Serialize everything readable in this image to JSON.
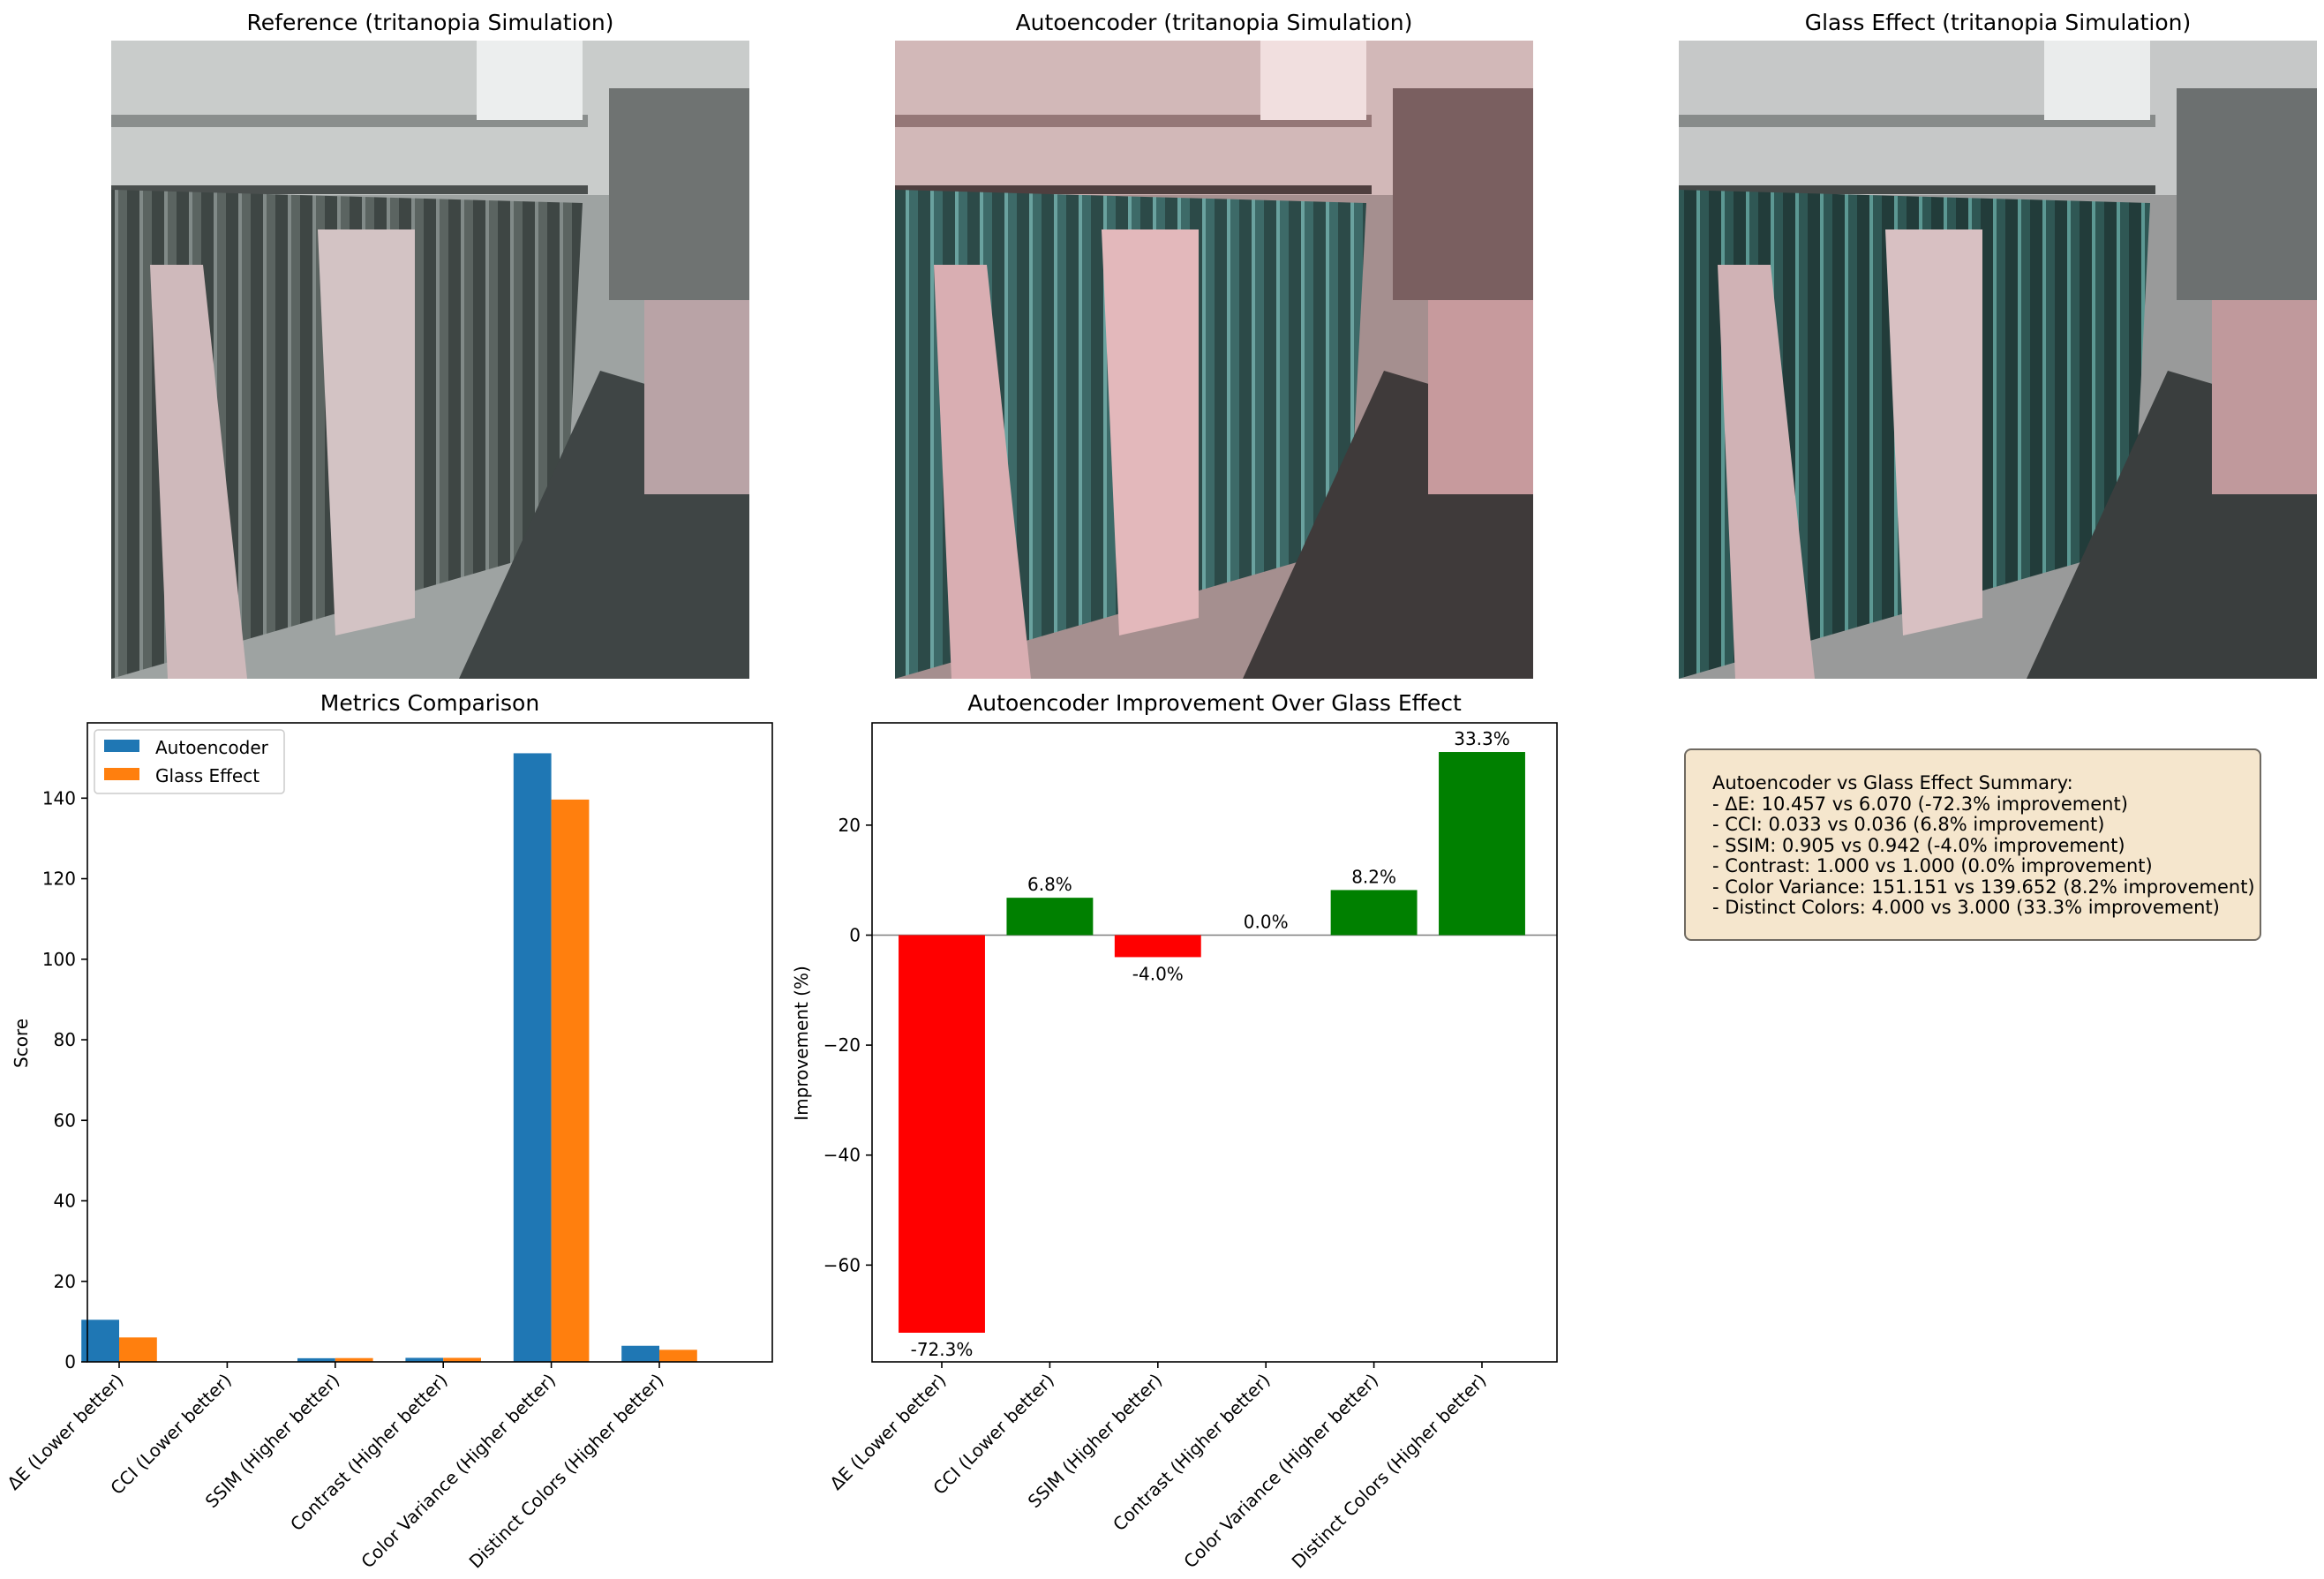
{
  "images": [
    {
      "title": "Reference (tritanopia Simulation)",
      "tint": "neutral"
    },
    {
      "title": "Autoencoder (tritanopia Simulation)",
      "tint": "red"
    },
    {
      "title": "Glass Effect (tritanopia Simulation)",
      "tint": "teal"
    }
  ],
  "chart_data": [
    {
      "type": "bar",
      "title": "Metrics Comparison",
      "xlabel": "",
      "ylabel": "Score",
      "categories": [
        "ΔE (Lower better)",
        "CCI (Lower better)",
        "SSIM (Higher better)",
        "Contrast (Higher better)",
        "Color Variance (Higher better)",
        "Distinct Colors (Higher better)"
      ],
      "series": [
        {
          "name": "Autoencoder",
          "color": "#1f77b4",
          "values": [
            10.457,
            0.033,
            0.905,
            1.0,
            151.151,
            4.0
          ]
        },
        {
          "name": "Glass Effect",
          "color": "#ff7f0e",
          "values": [
            6.07,
            0.036,
            0.942,
            1.0,
            139.652,
            3.0
          ]
        }
      ],
      "ylim": [
        0,
        158.7
      ],
      "yticks": [
        0,
        20,
        40,
        60,
        80,
        100,
        120,
        140
      ],
      "legend": "top-left",
      "grid": false
    },
    {
      "type": "bar",
      "title": "Autoencoder Improvement Over Glass Effect",
      "xlabel": "",
      "ylabel": "Improvement (%)",
      "categories": [
        "ΔE (Lower better)",
        "CCI (Lower better)",
        "SSIM (Higher better)",
        "Contrast (Higher better)",
        "Color Variance (Higher better)",
        "Distinct Colors (Higher better)"
      ],
      "values": [
        -72.3,
        6.8,
        -4.0,
        0.0,
        8.2,
        33.3
      ],
      "labels": [
        "-72.3%",
        "6.8%",
        "-4.0%",
        "0.0%",
        "8.2%",
        "33.3%"
      ],
      "positive_color": "#008000",
      "negative_color": "#ff0000",
      "ylim": [
        -77.6,
        38.6
      ],
      "yticks": [
        20,
        0,
        -20,
        -40,
        -60
      ],
      "ytick_labels": [
        "20",
        "0",
        "−20",
        "−40",
        "−60"
      ],
      "grid": false
    }
  ],
  "summary": {
    "lines": [
      "Autoencoder vs Glass Effect Summary:",
      "- ΔE: 10.457 vs 6.070 (-72.3% improvement)",
      "- CCI: 0.033 vs 0.036 (6.8% improvement)",
      "- SSIM: 0.905 vs 0.942 (-4.0% improvement)",
      "- Contrast: 1.000 vs 1.000 (0.0% improvement)",
      "- Color Variance: 151.151 vs 139.652 (8.2% improvement)",
      "- Distinct Colors: 4.000 vs 3.000 (33.3% improvement)"
    ]
  }
}
